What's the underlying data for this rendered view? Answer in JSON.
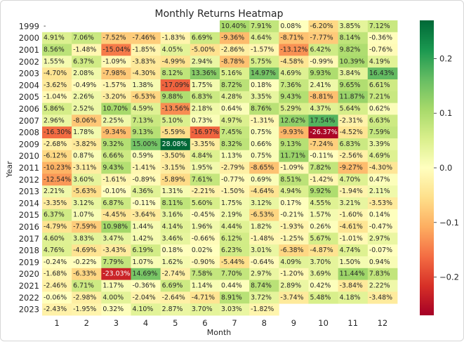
{
  "chart_data": {
    "type": "heatmap",
    "title": "Monthly Returns Heatmap",
    "xlabel": "Month",
    "ylabel": "Year",
    "x_categories": [
      "1",
      "2",
      "3",
      "4",
      "5",
      "6",
      "7",
      "8",
      "9",
      "10",
      "11",
      "12"
    ],
    "y_categories": [
      "1999",
      "2000",
      "2001",
      "2002",
      "2003",
      "2004",
      "2005",
      "2006",
      "2007",
      "2008",
      "2009",
      "2010",
      "2011",
      "2012",
      "2013",
      "2014",
      "2015",
      "2016",
      "2017",
      "2018",
      "2019",
      "2020",
      "2021",
      "2022",
      "2023"
    ],
    "values": [
      [
        null,
        null,
        null,
        null,
        null,
        null,
        10.4,
        7.91,
        0.08,
        -6.2,
        3.85,
        7.12
      ],
      [
        4.91,
        7.06,
        -7.52,
        -7.46,
        -1.83,
        6.69,
        -9.36,
        4.64,
        -8.71,
        -7.77,
        8.14,
        -0.36
      ],
      [
        8.56,
        -1.48,
        -15.04,
        -1.85,
        4.05,
        -5.0,
        -2.86,
        -1.57,
        -13.12,
        6.42,
        9.82,
        -0.76
      ],
      [
        1.55,
        6.37,
        -1.09,
        -3.83,
        -4.99,
        2.94,
        -8.78,
        5.75,
        -4.58,
        -0.99,
        10.39,
        4.19
      ],
      [
        -4.7,
        2.08,
        -7.98,
        -4.3,
        8.12,
        13.36,
        5.16,
        14.97,
        4.69,
        9.93,
        3.84,
        16.43
      ],
      [
        -3.62,
        -0.49,
        -1.57,
        1.38,
        -17.09,
        1.75,
        8.72,
        0.18,
        7.36,
        2.41,
        9.65,
        6.61
      ],
      [
        -1.04,
        2.26,
        -3.2,
        -6.53,
        9.88,
        6.83,
        4.28,
        3.35,
        9.43,
        -8.81,
        11.87,
        7.21
      ],
      [
        5.86,
        2.52,
        10.7,
        4.59,
        -13.56,
        2.18,
        0.64,
        8.76,
        5.29,
        4.37,
        5.64,
        0.62
      ],
      [
        2.96,
        -8.06,
        2.25,
        7.13,
        5.1,
        0.73,
        4.97,
        -1.31,
        12.62,
        17.54,
        -2.31,
        6.63
      ],
      [
        -16.3,
        1.78,
        -9.34,
        9.13,
        -5.59,
        -16.97,
        7.45,
        0.75,
        -9.93,
        -26.37,
        -4.52,
        7.59
      ],
      [
        -2.68,
        -3.82,
        9.32,
        15.0,
        28.08,
        -3.35,
        8.32,
        0.66,
        9.13,
        -7.24,
        6.83,
        3.39
      ],
      [
        -6.12,
        0.87,
        6.66,
        0.59,
        -3.5,
        4.84,
        1.13,
        0.75,
        11.71,
        -0.11,
        -2.56,
        4.69
      ],
      [
        -10.23,
        -3.11,
        9.43,
        -1.41,
        -3.15,
        1.95,
        -2.79,
        -8.65,
        -1.09,
        7.82,
        -9.27,
        -4.3
      ],
      [
        -12.54,
        3.6,
        -1.61,
        -0.89,
        -5.89,
        7.61,
        -0.77,
        0.69,
        8.51,
        -1.42,
        4.7,
        0.47
      ],
      [
        2.21,
        -5.63,
        -0.1,
        4.36,
        1.31,
        -2.21,
        -1.5,
        -4.64,
        4.94,
        9.92,
        -1.94,
        2.11
      ],
      [
        -3.35,
        3.12,
        6.87,
        -0.11,
        8.11,
        5.6,
        1.75,
        3.12,
        0.17,
        4.55,
        3.21,
        -3.53
      ],
      [
        6.37,
        1.07,
        -4.45,
        -3.64,
        3.16,
        -0.45,
        2.19,
        -6.53,
        -0.21,
        1.57,
        -1.6,
        0.14
      ],
      [
        -4.79,
        -7.59,
        10.98,
        1.44,
        4.14,
        1.96,
        4.44,
        1.82,
        -1.93,
        0.26,
        -4.61,
        -0.47
      ],
      [
        4.6,
        3.83,
        3.47,
        1.42,
        3.46,
        -0.66,
        6.12,
        -1.48,
        -1.25,
        5.67,
        -1.01,
        2.97
      ],
      [
        4.76,
        -4.69,
        -3.43,
        6.19,
        0.18,
        0.02,
        6.23,
        3.01,
        -6.38,
        -4.87,
        4.74,
        -0.07
      ],
      [
        -0.24,
        -0.22,
        7.79,
        1.07,
        1.62,
        -0.9,
        -5.44,
        -0.64,
        4.09,
        3.7,
        1.5,
        0.94
      ],
      [
        -1.68,
        -6.33,
        -23.03,
        14.69,
        -2.74,
        7.58,
        7.7,
        2.97,
        -1.2,
        3.69,
        11.44,
        7.83
      ],
      [
        -2.46,
        6.71,
        1.17,
        -0.36,
        6.69,
        1.14,
        0.44,
        8.74,
        2.89,
        0.42,
        -3.84,
        2.22
      ],
      [
        -0.06,
        -2.98,
        4.0,
        -2.04,
        -2.64,
        -4.71,
        8.91,
        3.72,
        -3.74,
        5.48,
        4.18,
        -3.48
      ],
      [
        -2.43,
        -1.95,
        0.32,
        4.1,
        2.87,
        3.7,
        3.03,
        -1.82,
        null,
        null,
        null,
        null
      ]
    ],
    "value_format": "percent_2dp",
    "colorscale": "RdYlGn",
    "colorscale_colors": [
      "#a50026",
      "#d73027",
      "#f46d43",
      "#fdae61",
      "#fee08b",
      "#ffffbf",
      "#d9ef8b",
      "#a6d96a",
      "#66bd63",
      "#1a9850",
      "#006837"
    ],
    "color_range": [
      -0.27,
      0.27
    ],
    "colorbar_ticks": [
      "0.2",
      "0.1",
      "0.0",
      "−0.1",
      "−0.2"
    ],
    "colorbar_tick_values": [
      0.2,
      0.1,
      0.0,
      -0.1,
      -0.2
    ],
    "missing_label": "-",
    "grid": false,
    "legend": "right"
  }
}
